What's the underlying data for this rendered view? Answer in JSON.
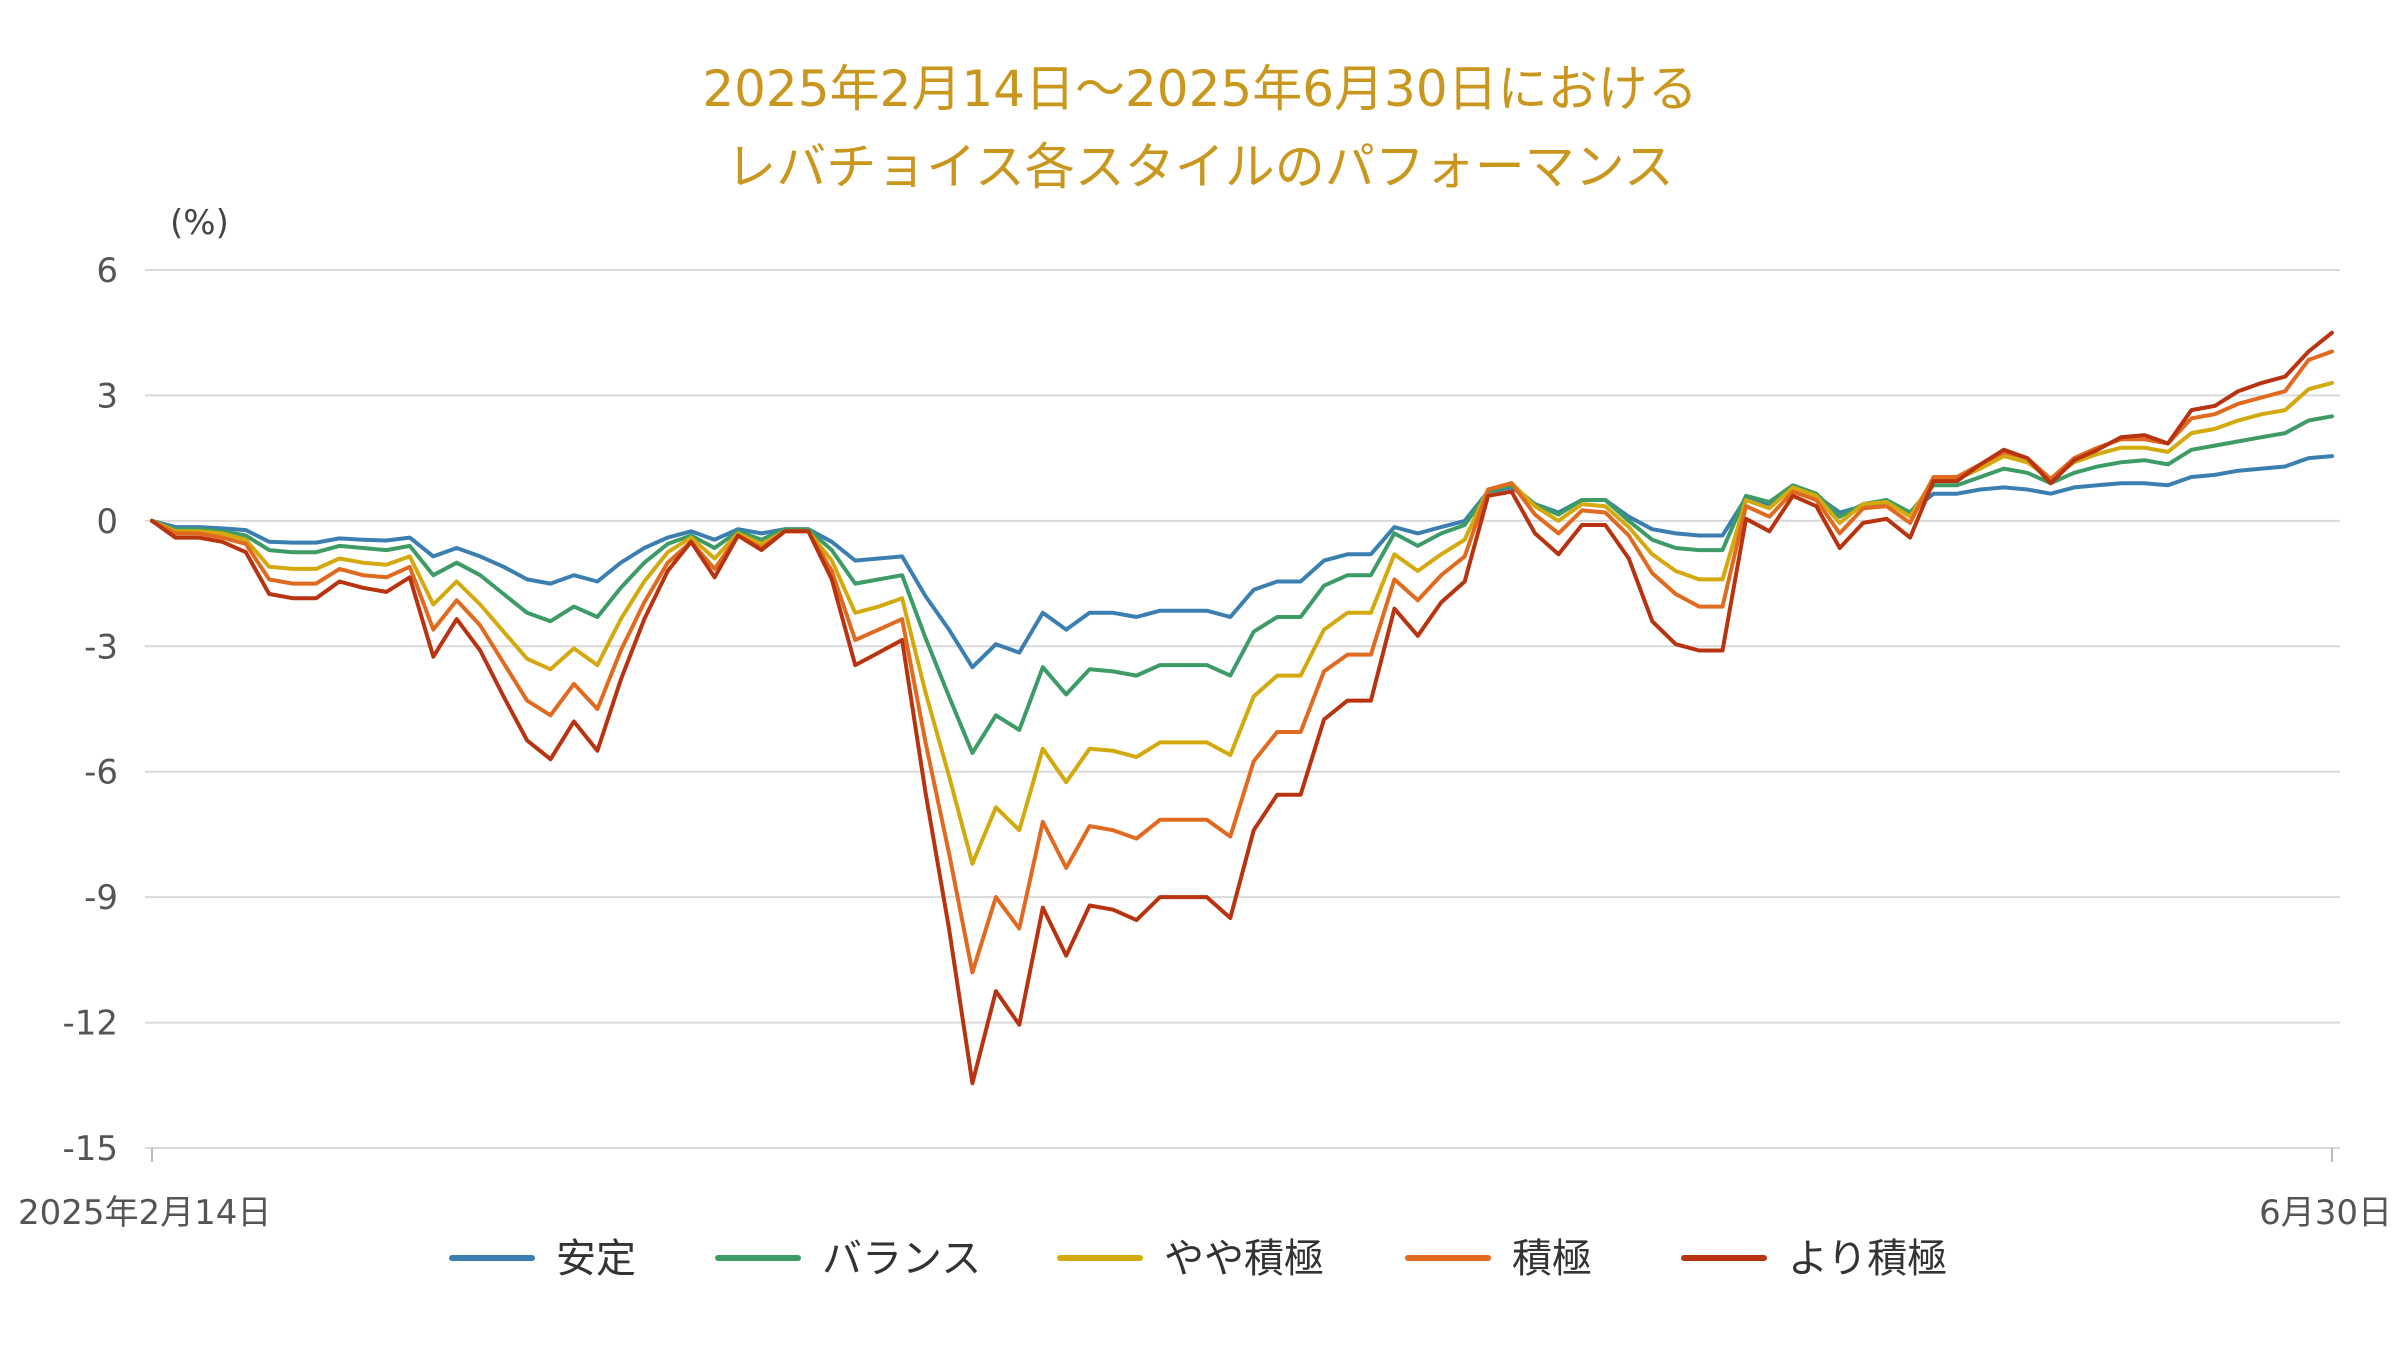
{
  "chart_data": {
    "type": "line",
    "title": [
      "2025年2月14日〜2025年6月30日における",
      "レバチョイス各スタイルのパフォーマンス"
    ],
    "ylabel": "(%)",
    "ylim": [
      -15,
      6
    ],
    "yticks": [
      6,
      3,
      0,
      -3,
      -6,
      -9,
      -12,
      -15
    ],
    "x_start": 0,
    "x_end": 93,
    "x_tick_labels": [
      {
        "x": 0,
        "label": "2025年2月14日"
      },
      {
        "x": 93,
        "label": "6月30日"
      }
    ],
    "grid": true,
    "legend_position": "bottom",
    "series": [
      {
        "name": "安定",
        "color": "#3a7fb0",
        "values": [
          0,
          -0.15,
          -0.15,
          -0.18,
          -0.22,
          -0.5,
          -0.52,
          -0.52,
          -0.42,
          -0.45,
          -0.47,
          -0.4,
          -0.85,
          -0.65,
          -0.85,
          -1.1,
          -1.4,
          -1.5,
          -1.3,
          -1.45,
          -1.0,
          -0.65,
          -0.4,
          -0.25,
          -0.45,
          -0.2,
          -0.3,
          -0.2,
          -0.2,
          -0.5,
          -0.95,
          -0.9,
          -0.85,
          -1.8,
          -2.6,
          -3.5,
          -2.95,
          -3.15,
          -2.2,
          -2.6,
          -2.2,
          -2.2,
          -2.3,
          -2.15,
          -2.15,
          -2.15,
          -2.3,
          -1.65,
          -1.45,
          -1.45,
          -0.95,
          -0.8,
          -0.8,
          -0.15,
          -0.3,
          -0.15,
          0.0,
          0.7,
          0.8,
          0.4,
          0.2,
          0.5,
          0.5,
          0.1,
          -0.2,
          -0.3,
          -0.35,
          -0.35,
          0.55,
          0.4,
          0.8,
          0.6,
          0.2,
          0.35,
          0.45,
          0.2,
          0.65,
          0.65,
          0.75,
          0.8,
          0.75,
          0.65,
          0.8,
          0.85,
          0.9,
          0.9,
          0.85,
          1.05,
          1.1,
          1.2,
          1.25,
          1.3,
          1.5,
          1.55
        ]
      },
      {
        "name": "バランス",
        "color": "#3d9b66",
        "values": [
          0,
          -0.2,
          -0.2,
          -0.25,
          -0.35,
          -0.7,
          -0.75,
          -0.75,
          -0.6,
          -0.65,
          -0.7,
          -0.6,
          -1.3,
          -1.0,
          -1.3,
          -1.75,
          -2.2,
          -2.4,
          -2.05,
          -2.3,
          -1.6,
          -1.0,
          -0.55,
          -0.35,
          -0.65,
          -0.25,
          -0.45,
          -0.2,
          -0.2,
          -0.7,
          -1.5,
          -1.4,
          -1.3,
          -2.8,
          -4.2,
          -5.55,
          -4.65,
          -5.0,
          -3.5,
          -4.15,
          -3.55,
          -3.6,
          -3.7,
          -3.45,
          -3.45,
          -3.45,
          -3.7,
          -2.65,
          -2.3,
          -2.3,
          -1.55,
          -1.3,
          -1.3,
          -0.3,
          -0.6,
          -0.3,
          -0.1,
          0.7,
          0.85,
          0.4,
          0.15,
          0.5,
          0.5,
          0.0,
          -0.45,
          -0.65,
          -0.7,
          -0.7,
          0.6,
          0.45,
          0.85,
          0.65,
          0.1,
          0.4,
          0.5,
          0.2,
          0.85,
          0.85,
          1.05,
          1.25,
          1.15,
          0.9,
          1.15,
          1.3,
          1.4,
          1.45,
          1.35,
          1.7,
          1.8,
          1.9,
          2.0,
          2.1,
          2.4,
          2.5
        ]
      },
      {
        "name": "やや積極",
        "color": "#d4a90e",
        "values": [
          0,
          -0.25,
          -0.25,
          -0.3,
          -0.45,
          -1.1,
          -1.15,
          -1.15,
          -0.9,
          -1.0,
          -1.05,
          -0.85,
          -2.0,
          -1.45,
          -2.0,
          -2.65,
          -3.3,
          -3.55,
          -3.05,
          -3.45,
          -2.35,
          -1.45,
          -0.75,
          -0.4,
          -0.9,
          -0.3,
          -0.55,
          -0.25,
          -0.25,
          -0.95,
          -2.2,
          -2.05,
          -1.85,
          -4.1,
          -6.1,
          -8.2,
          -6.85,
          -7.4,
          -5.45,
          -6.25,
          -5.45,
          -5.5,
          -5.65,
          -5.3,
          -5.3,
          -5.3,
          -5.6,
          -4.2,
          -3.7,
          -3.7,
          -2.6,
          -2.2,
          -2.2,
          -0.8,
          -1.2,
          -0.8,
          -0.45,
          0.75,
          0.9,
          0.35,
          0.0,
          0.4,
          0.35,
          -0.15,
          -0.8,
          -1.2,
          -1.4,
          -1.4,
          0.5,
          0.3,
          0.8,
          0.6,
          -0.05,
          0.4,
          0.45,
          0.1,
          1.0,
          1.0,
          1.25,
          1.55,
          1.4,
          1.0,
          1.4,
          1.6,
          1.75,
          1.75,
          1.65,
          2.1,
          2.2,
          2.4,
          2.55,
          2.65,
          3.15,
          3.3
        ]
      },
      {
        "name": "積極",
        "color": "#e06a1f",
        "values": [
          0,
          -0.3,
          -0.3,
          -0.4,
          -0.55,
          -1.4,
          -1.5,
          -1.5,
          -1.15,
          -1.3,
          -1.35,
          -1.1,
          -2.6,
          -1.9,
          -2.5,
          -3.4,
          -4.3,
          -4.65,
          -3.9,
          -4.5,
          -3.1,
          -1.95,
          -1.0,
          -0.5,
          -1.15,
          -0.35,
          -0.65,
          -0.25,
          -0.25,
          -1.2,
          -2.85,
          -2.6,
          -2.35,
          -5.3,
          -7.95,
          -10.8,
          -9.0,
          -9.75,
          -7.2,
          -8.3,
          -7.3,
          -7.4,
          -7.6,
          -7.15,
          -7.15,
          -7.15,
          -7.55,
          -5.75,
          -5.05,
          -5.05,
          -3.6,
          -3.2,
          -3.2,
          -1.4,
          -1.9,
          -1.3,
          -0.85,
          0.75,
          0.9,
          0.15,
          -0.3,
          0.25,
          0.2,
          -0.35,
          -1.25,
          -1.75,
          -2.05,
          -2.05,
          0.35,
          0.1,
          0.7,
          0.5,
          -0.3,
          0.3,
          0.35,
          -0.05,
          1.05,
          1.05,
          1.35,
          1.65,
          1.5,
          1.0,
          1.5,
          1.75,
          1.95,
          1.95,
          1.85,
          2.45,
          2.55,
          2.8,
          2.95,
          3.1,
          3.85,
          4.05
        ]
      },
      {
        "name": "より積極",
        "color": "#b8330f",
        "values": [
          0,
          -0.4,
          -0.4,
          -0.5,
          -0.75,
          -1.75,
          -1.85,
          -1.85,
          -1.45,
          -1.6,
          -1.7,
          -1.35,
          -3.25,
          -2.35,
          -3.1,
          -4.2,
          -5.25,
          -5.7,
          -4.8,
          -5.5,
          -3.8,
          -2.35,
          -1.2,
          -0.5,
          -1.35,
          -0.35,
          -0.7,
          -0.25,
          -0.25,
          -1.4,
          -3.45,
          -3.15,
          -2.85,
          -6.5,
          -9.75,
          -13.45,
          -11.25,
          -12.05,
          -9.25,
          -10.4,
          -9.2,
          -9.3,
          -9.55,
          -9.0,
          -9.0,
          -9.0,
          -9.5,
          -7.4,
          -6.55,
          -6.55,
          -4.75,
          -4.3,
          -4.3,
          -2.1,
          -2.75,
          -1.95,
          -1.45,
          0.6,
          0.7,
          -0.3,
          -0.8,
          -0.1,
          -0.1,
          -0.9,
          -2.4,
          -2.95,
          -3.1,
          -3.1,
          0.05,
          -0.25,
          0.6,
          0.35,
          -0.65,
          -0.05,
          0.05,
          -0.4,
          0.95,
          0.95,
          1.35,
          1.7,
          1.5,
          0.9,
          1.45,
          1.7,
          2.0,
          2.05,
          1.85,
          2.65,
          2.75,
          3.1,
          3.3,
          3.45,
          4.05,
          4.5
        ]
      }
    ]
  }
}
